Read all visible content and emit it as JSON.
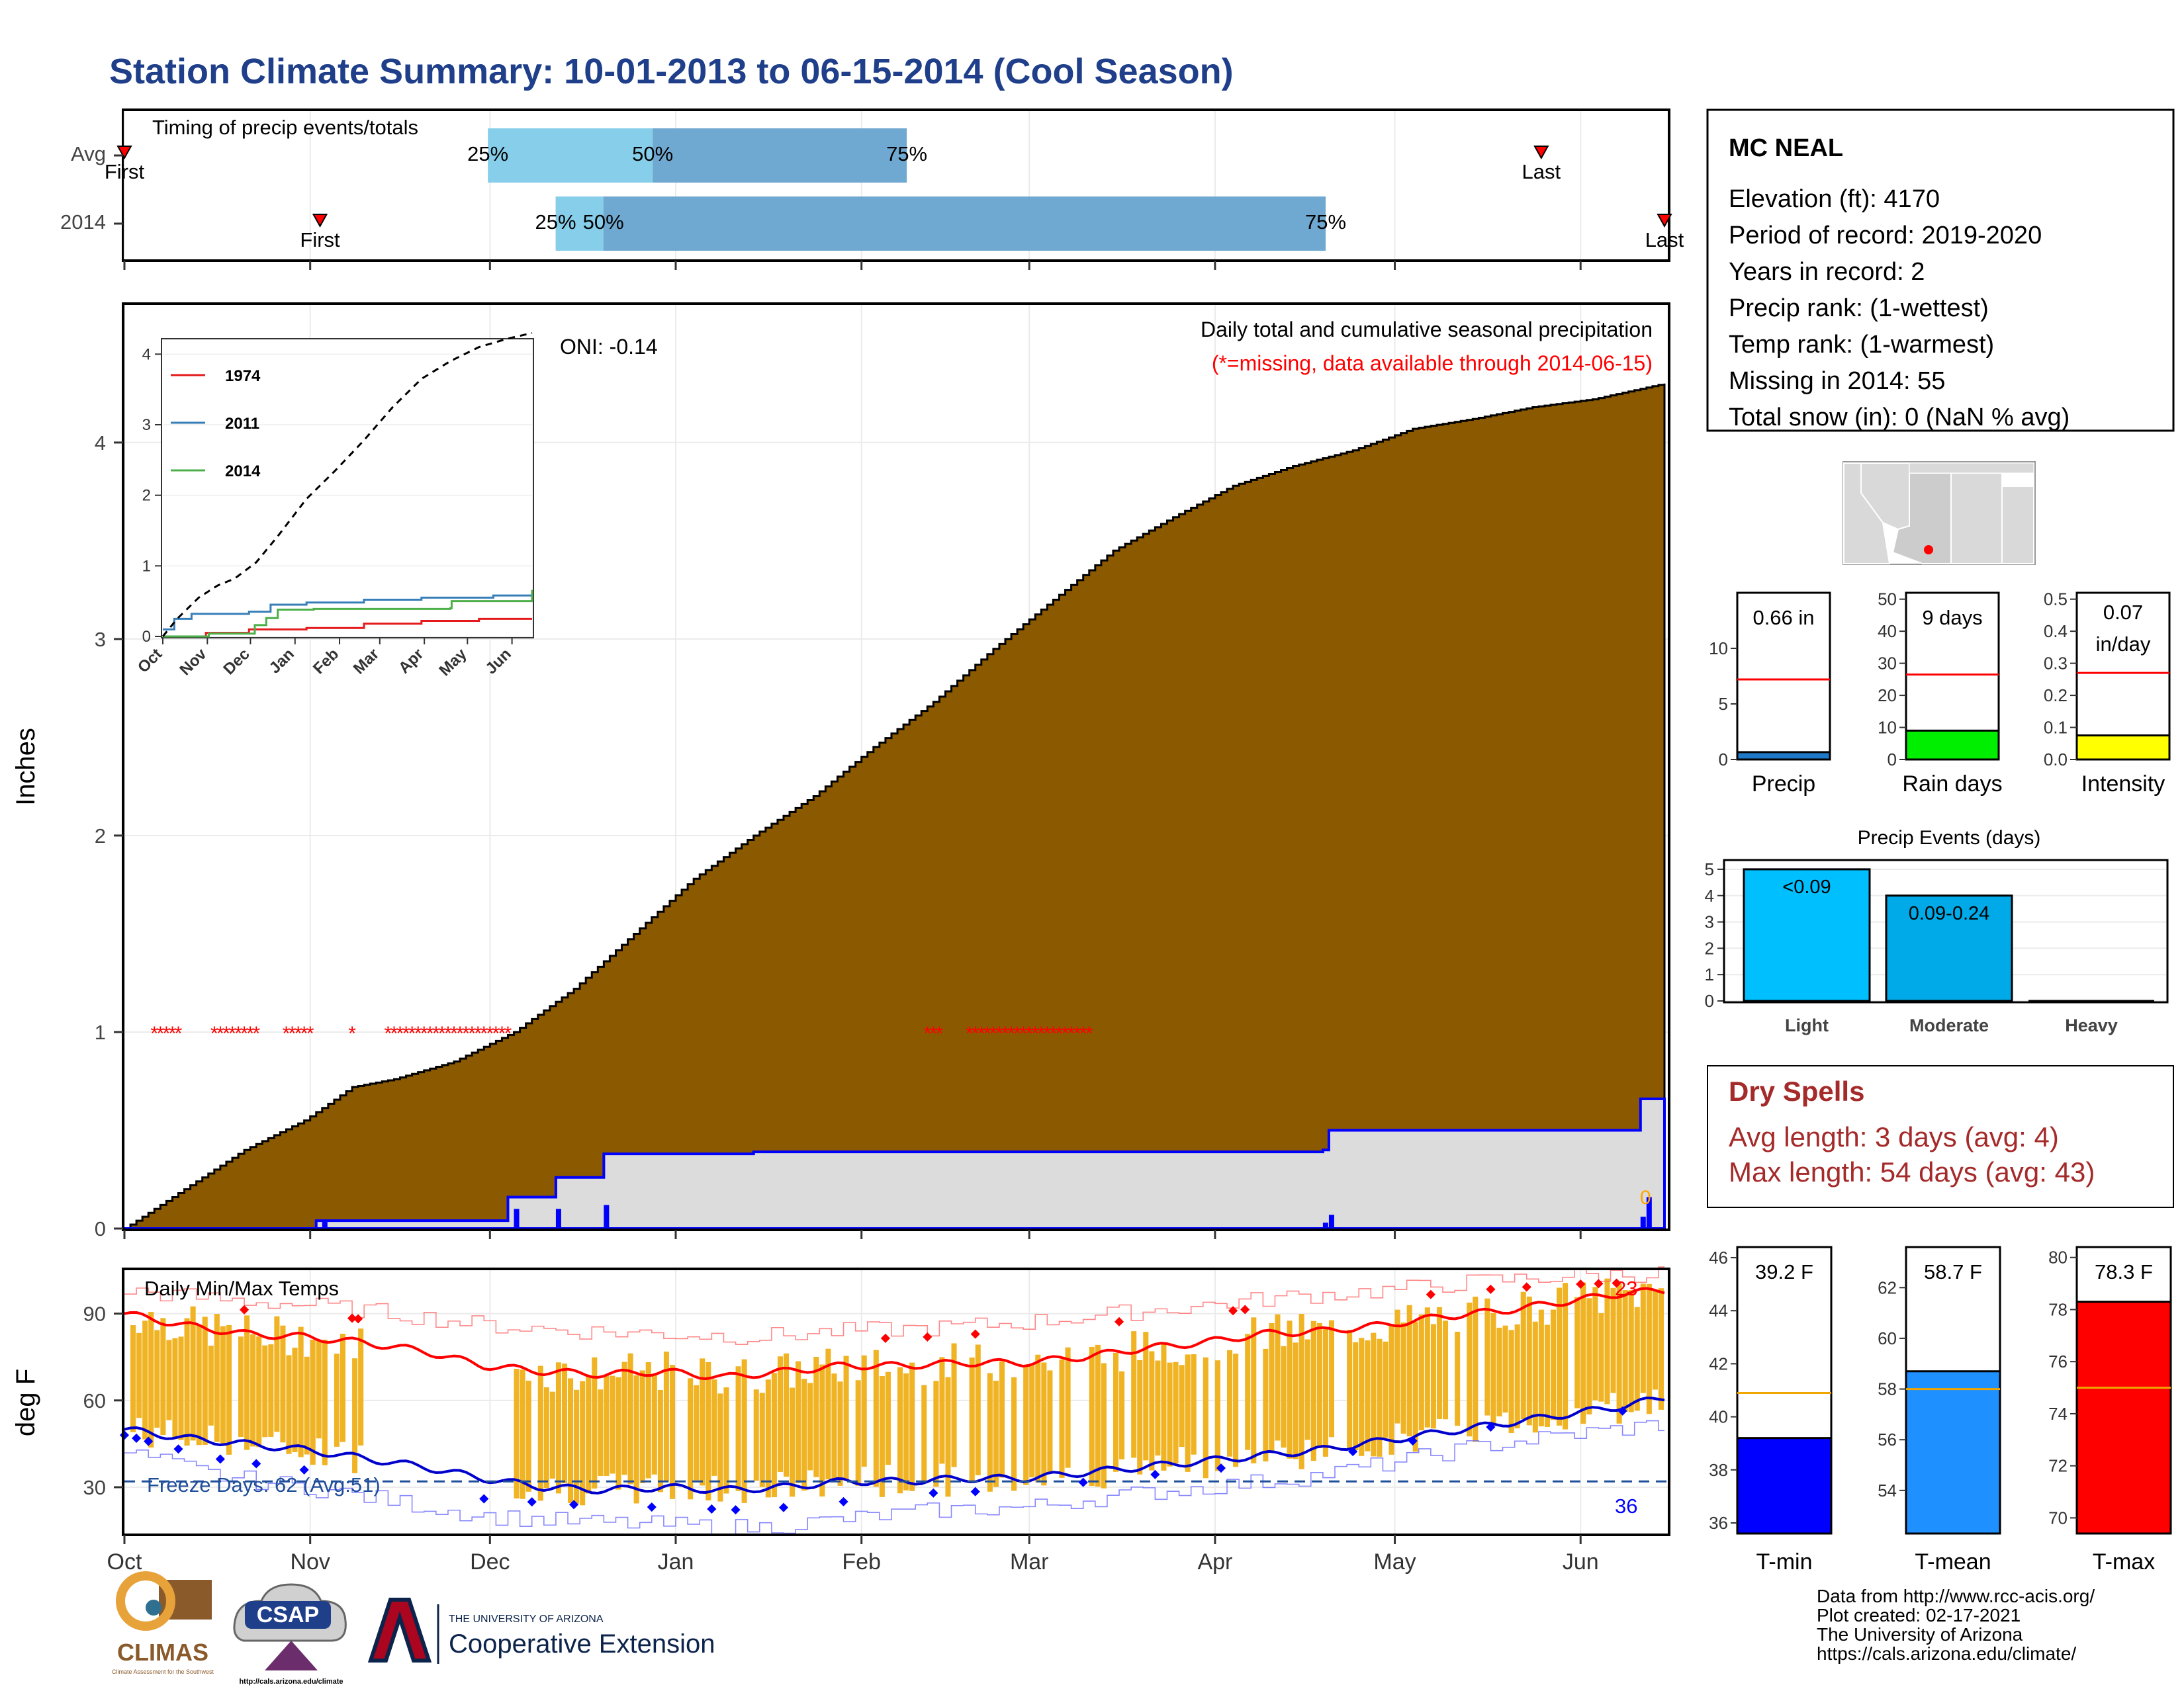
{
  "page": {
    "title": "Station Climate Summary: 10-01-2013 to 06-15-2014 (Cool Season)",
    "footer_lines": [
      "Data from http://www.rcc-acis.org/",
      "Plot created: 02-17-2021",
      "The University of Arizona",
      "https://cals.arizona.edu/climate/"
    ],
    "logos": {
      "climas": "CLIMAS",
      "climas_sub": "Climate Assessment for the Southwest",
      "csap": "CSAP",
      "csap_url": "http://cals.arizona.edu/climate",
      "ua_small": "THE UNIVERSITY OF ARIZONA",
      "ua_big": "Cooperative Extension"
    },
    "colors": {
      "title": "#1f3f8a",
      "brown": "#8b5a00",
      "blue": "#0000ff",
      "red": "#ff0000",
      "orange": "#f0b323",
      "dry_spells": "#a52a2a"
    }
  },
  "month_labels": [
    "Oct",
    "Nov",
    "Dec",
    "Jan",
    "Feb",
    "Mar",
    "Apr",
    "May",
    "Jun"
  ],
  "station": {
    "name": "MC NEAL",
    "lines": [
      "Elevation (ft): 4170",
      "Period of record: 2019-2020",
      "Years in record: 2",
      "Precip rank:  (1-wettest)",
      "Temp rank:  (1-warmest)",
      "Missing in 2014: 55",
      "Total snow (in): 0 (NaN % avg)"
    ]
  },
  "dry_spells": {
    "title": "Dry Spells",
    "avg_line": "Avg length: 3 days (avg: 4)",
    "max_line": "Max length: 54 days (avg: 43)"
  },
  "chart_data": [
    {
      "id": "timing",
      "type": "bar",
      "title": "Timing of precip events/totals",
      "rows": [
        {
          "label": "Avg",
          "p25": 0.236,
          "p50": 0.343,
          "p75": 0.508,
          "first": 0.0,
          "last": 0.92,
          "texts": {
            "p25": "25%",
            "p50": "50%",
            "p75": "75%",
            "first": "First",
            "last": "Last"
          }
        },
        {
          "label": "2014",
          "p25": 0.28,
          "p50": 0.311,
          "p75": 0.78,
          "first": 0.127,
          "last": 1.0,
          "texts": {
            "p25": "25%",
            "p50": "50%",
            "p75": "75%",
            "first": "First",
            "last": "Last"
          }
        }
      ]
    },
    {
      "id": "precip",
      "type": "area",
      "title": "Daily total and cumulative seasonal precipitation",
      "subtitle": "(*=missing, data available through 2014-06-15)",
      "ylabel": "Inches",
      "ylim": [
        0,
        4.7
      ],
      "yticks": [
        0,
        1,
        2,
        3,
        4
      ],
      "oni": "ONI: -0.14",
      "end_label": "0",
      "avg_cumulative": {
        "x": [
          0,
          10,
          20,
          30,
          38,
          45,
          55,
          65,
          75,
          85,
          95,
          105,
          115,
          125,
          135,
          145,
          155,
          165,
          175,
          185,
          195,
          205,
          215,
          225,
          235,
          245,
          257
        ],
        "y": [
          0,
          0.2,
          0.4,
          0.55,
          0.72,
          0.76,
          0.85,
          1.0,
          1.22,
          1.5,
          1.78,
          2.0,
          2.2,
          2.45,
          2.68,
          2.95,
          3.2,
          3.45,
          3.62,
          3.78,
          3.88,
          3.96,
          4.07,
          4.12,
          4.18,
          4.22,
          4.3
        ]
      },
      "cumulative_2014": {
        "x": [
          0,
          32,
          64,
          72,
          80,
          105,
          200,
          201,
          252,
          253,
          257
        ],
        "y": [
          0,
          0.04,
          0.16,
          0.26,
          0.38,
          0.39,
          0.4,
          0.5,
          0.5,
          0.66,
          0.66
        ]
      },
      "daily_bars": {
        "x": [
          33,
          65,
          72,
          80,
          200,
          201,
          253,
          254
        ],
        "y": [
          0.04,
          0.1,
          0.1,
          0.12,
          0.03,
          0.07,
          0.06,
          0.16
        ]
      },
      "missing_days": {
        "y": 1.0,
        "ranges": [
          [
            5,
            9
          ],
          [
            15,
            22
          ],
          [
            27,
            31
          ],
          [
            38,
            38
          ],
          [
            44,
            64
          ],
          [
            134,
            136
          ],
          [
            141,
            161
          ]
        ]
      }
    },
    {
      "id": "inset",
      "type": "line",
      "xlabels": [
        "Oct",
        "Nov",
        "Dec",
        "Jan",
        "Feb",
        "Mar",
        "Apr",
        "May",
        "Jun"
      ],
      "ylim": [
        0,
        4.2
      ],
      "yticks": [
        0,
        1,
        2,
        3,
        4
      ],
      "series": [
        {
          "name": "1974",
          "color": "#e41a1c",
          "x": [
            0,
            15,
            30,
            60,
            100,
            140,
            180,
            220,
            257
          ],
          "y": [
            0,
            0,
            0.05,
            0.1,
            0.12,
            0.18,
            0.22,
            0.25,
            0.25
          ]
        },
        {
          "name": "2011",
          "color": "#377eb8",
          "x": [
            0,
            8,
            20,
            60,
            75,
            100,
            140,
            180,
            230,
            257
          ],
          "y": [
            0.1,
            0.25,
            0.32,
            0.35,
            0.45,
            0.48,
            0.52,
            0.55,
            0.58,
            0.6
          ]
        },
        {
          "name": "2014",
          "color": "#4daf4a",
          "x": [
            0,
            32,
            64,
            72,
            80,
            105,
            200,
            201,
            252,
            257
          ],
          "y": [
            0,
            0.04,
            0.16,
            0.26,
            0.38,
            0.39,
            0.4,
            0.5,
            0.5,
            0.66
          ]
        },
        {
          "name": "avg",
          "color": "#000000",
          "dashed": true,
          "x": [
            0,
            10,
            25,
            38,
            50,
            65,
            80,
            100,
            120,
            140,
            160,
            180,
            200,
            220,
            240,
            257
          ],
          "y": [
            0,
            0.25,
            0.55,
            0.72,
            0.82,
            1.05,
            1.42,
            1.95,
            2.35,
            2.78,
            3.25,
            3.65,
            3.9,
            4.1,
            4.22,
            4.3
          ]
        }
      ]
    },
    {
      "id": "temps",
      "type": "line",
      "title": "Daily Min/Max Temps",
      "ylabel": "deg F",
      "ylim": [
        14,
        105
      ],
      "yticks": [
        30,
        60,
        90
      ],
      "freeze_label": "Freeze Days: 62 (Avg:51)",
      "freeze_line": 32,
      "count_low": "36",
      "count_high": "23",
      "avg_max": {
        "x": [
          0,
          10,
          20,
          30,
          40,
          50,
          60,
          70,
          80,
          90,
          100,
          110,
          120,
          130,
          140,
          150,
          160,
          170,
          180,
          190,
          200,
          210,
          220,
          230,
          240,
          250,
          257
        ],
        "y": [
          90,
          86,
          83,
          82,
          80,
          77,
          72,
          70,
          69,
          70,
          68,
          70,
          72,
          72,
          73,
          73,
          75,
          78,
          80,
          83,
          84,
          86,
          89,
          91,
          94,
          97,
          98
        ]
      },
      "avg_min": {
        "x": [
          0,
          10,
          20,
          30,
          40,
          50,
          60,
          70,
          80,
          90,
          100,
          110,
          120,
          130,
          140,
          150,
          160,
          170,
          180,
          190,
          200,
          210,
          220,
          230,
          240,
          250,
          257
        ],
        "y": [
          50,
          47,
          45,
          43,
          40,
          37,
          33,
          30,
          29,
          30,
          29,
          30,
          32,
          32,
          33,
          33,
          35,
          37,
          39,
          41,
          43,
          46,
          49,
          52,
          55,
          58,
          61
        ]
      },
      "record_max": {
        "x": [
          0,
          15,
          30,
          45,
          60,
          75,
          90,
          105,
          120,
          135,
          150,
          165,
          180,
          195,
          210,
          225,
          240,
          257
        ],
        "y": [
          98,
          95,
          93,
          90,
          86,
          84,
          83,
          82,
          84,
          85,
          87,
          90,
          93,
          96,
          98,
          101,
          103,
          104
        ]
      },
      "record_min": {
        "x": [
          0,
          15,
          30,
          45,
          60,
          75,
          90,
          105,
          120,
          135,
          150,
          165,
          180,
          195,
          210,
          225,
          240,
          257
        ],
        "y": [
          42,
          34,
          30,
          25,
          20,
          18,
          17,
          16,
          19,
          22,
          23,
          27,
          30,
          33,
          38,
          44,
          48,
          52
        ]
      },
      "missing_ranges": [
        [
          40,
          64
        ],
        [
          158,
          160
        ]
      ]
    },
    {
      "id": "precip_gauge",
      "type": "bar",
      "xlabel": "Precip",
      "value_label": "0.66 in",
      "value": 0.66,
      "avg": 7.2,
      "ylim": [
        0,
        15
      ],
      "yticks": [
        0,
        5,
        10
      ],
      "color": "#1f78c8"
    },
    {
      "id": "raindays_gauge",
      "type": "bar",
      "xlabel": "Rain days",
      "value_label": "9 days",
      "value": 9,
      "avg": 26.5,
      "ylim": [
        0,
        52
      ],
      "yticks": [
        0,
        10,
        20,
        30,
        40,
        50
      ],
      "color": "#00ee00"
    },
    {
      "id": "intensity_gauge",
      "type": "bar",
      "xlabel": "Intensity",
      "value_label": "0.07",
      "value_label2": "in/day",
      "value": 0.075,
      "avg": 0.27,
      "ylim": [
        0,
        0.52
      ],
      "yticks": [
        0.0,
        0.1,
        0.2,
        0.3,
        0.4,
        0.5
      ],
      "ytick_labels": [
        "0.0",
        "0.1",
        "0.2",
        "0.3",
        "0.4",
        "0.5"
      ],
      "color": "#ffff00"
    },
    {
      "id": "events",
      "type": "bar",
      "title": "Precip Events (days)",
      "categories": [
        "Light",
        "Moderate",
        "Heavy"
      ],
      "values": [
        5,
        4,
        0
      ],
      "bar_labels": [
        "<0.09",
        "0.09-0.24",
        ""
      ],
      "ylim": [
        0,
        5.3
      ],
      "yticks": [
        0,
        1,
        2,
        3,
        4,
        5
      ],
      "colors": [
        "#00bfff",
        "#00aae8",
        "#00aae8"
      ]
    },
    {
      "id": "tmin_gauge",
      "type": "bar",
      "xlabel": "T-min",
      "value_label": "39.2 F",
      "value": 39.2,
      "avg": 40.9,
      "ylim": [
        35.6,
        46.4
      ],
      "yticks": [
        36,
        38,
        40,
        42,
        44,
        46
      ],
      "color": "#0000ff"
    },
    {
      "id": "tmean_gauge",
      "type": "bar",
      "xlabel": "T-mean",
      "value_label": "58.7 F",
      "value": 58.7,
      "avg": 58.0,
      "ylim": [
        52.3,
        63.6
      ],
      "yticks": [
        54,
        56,
        58,
        60,
        62
      ],
      "color": "#1e90ff"
    },
    {
      "id": "tmax_gauge",
      "type": "bar",
      "xlabel": "T-max",
      "value_label": "78.3 F",
      "value": 78.3,
      "avg": 75.0,
      "ylim": [
        69.4,
        80.4
      ],
      "yticks": [
        70,
        72,
        74,
        76,
        78,
        80
      ],
      "color": "#ff0000"
    }
  ]
}
